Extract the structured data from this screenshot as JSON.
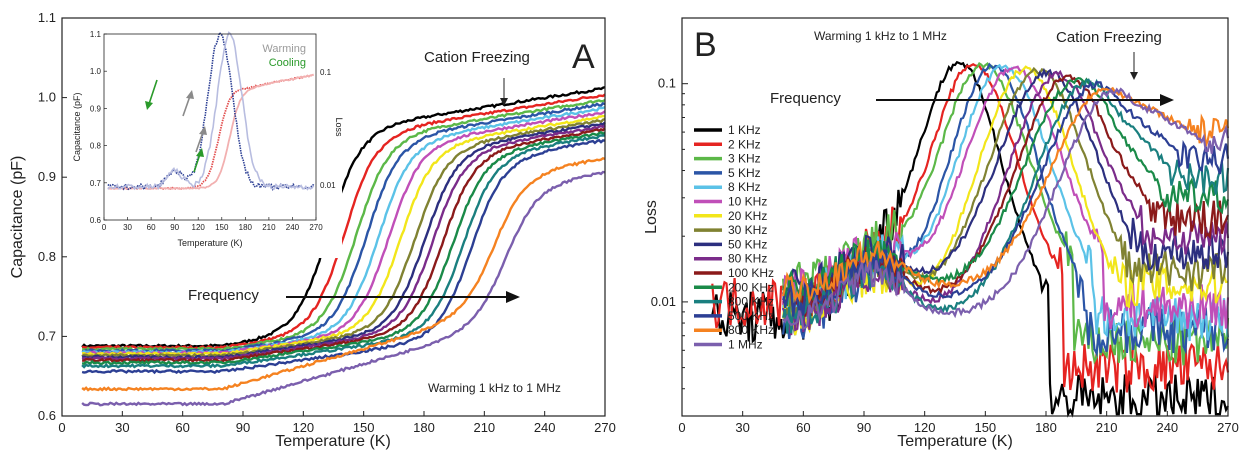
{
  "chart_data": [
    {
      "panel": "A",
      "type": "line",
      "xlabel": "Temperature (K)",
      "ylabel": "Capacitance (pF)",
      "xlim": [
        0,
        270
      ],
      "ylim": [
        0.6,
        1.1
      ],
      "xticks": [
        0,
        30,
        60,
        90,
        120,
        150,
        180,
        210,
        240,
        270
      ],
      "yticks": [
        0.6,
        0.7,
        0.8,
        0.9,
        1.0,
        1.1
      ],
      "annotations": {
        "cation_freezing": "Cation Freezing",
        "frequency": "Frequency",
        "warming": "Warming 1 kHz to 1 MHz"
      },
      "series": [
        {
          "color": "#000000",
          "base": 0.688,
          "top": 0.965,
          "mid": 133
        },
        {
          "color": "#e52421",
          "base": 0.686,
          "top": 0.96,
          "mid": 141
        },
        {
          "color": "#5cb848",
          "base": 0.684,
          "top": 0.956,
          "mid": 147
        },
        {
          "color": "#2b55a6",
          "base": 0.682,
          "top": 0.953,
          "mid": 152
        },
        {
          "color": "#5bc2e7",
          "base": 0.68,
          "top": 0.95,
          "mid": 158
        },
        {
          "color": "#c04fb8",
          "base": 0.679,
          "top": 0.947,
          "mid": 163
        },
        {
          "color": "#f2e61a",
          "base": 0.678,
          "top": 0.944,
          "mid": 169
        },
        {
          "color": "#808232",
          "base": 0.676,
          "top": 0.942,
          "mid": 176
        },
        {
          "color": "#2c2f7f",
          "base": 0.674,
          "top": 0.94,
          "mid": 181
        },
        {
          "color": "#7b2c8a",
          "base": 0.672,
          "top": 0.938,
          "mid": 185
        },
        {
          "color": "#8b1a1a",
          "base": 0.67,
          "top": 0.936,
          "mid": 190
        },
        {
          "color": "#1a8a48",
          "base": 0.667,
          "top": 0.934,
          "mid": 195
        },
        {
          "color": "#1a7f7f",
          "base": 0.663,
          "top": 0.932,
          "mid": 200
        },
        {
          "color": "#2c3f94",
          "base": 0.656,
          "top": 0.928,
          "mid": 204
        },
        {
          "color": "#f58220",
          "base": 0.634,
          "top": 0.91,
          "mid": 216
        },
        {
          "color": "#7b5fad",
          "base": 0.615,
          "top": 0.895,
          "mid": 222
        }
      ],
      "inset": {
        "xlabel": "Temperature (K)",
        "ylabel": "Capacitance (pF)",
        "y2label": "Loss",
        "xlim": [
          0,
          270
        ],
        "ylim": [
          0.6,
          1.1
        ],
        "xticks": [
          0,
          30,
          60,
          90,
          120,
          150,
          180,
          210,
          240,
          270
        ],
        "yticks": [
          0.6,
          0.7,
          0.8,
          0.9,
          1.0,
          1.1
        ],
        "y2ticks": [
          "0.1",
          "0.01"
        ],
        "legend": [
          {
            "name": "Warming",
            "color": "#9a9a9a"
          },
          {
            "name": "Cooling",
            "color": "#2a9a2a"
          }
        ]
      }
    },
    {
      "panel": "B",
      "type": "line",
      "xlabel": "Temperature (K)",
      "ylabel": "Loss",
      "xlim": [
        0,
        270
      ],
      "yscale": "log",
      "ylim": [
        0.003,
        0.2
      ],
      "xticks": [
        0,
        30,
        60,
        90,
        120,
        150,
        180,
        210,
        240,
        270
      ],
      "yticks": [
        0.01,
        0.1
      ],
      "annotations": {
        "cation_freezing": "Cation Freezing",
        "frequency": "Frequency",
        "warming": "Warming 1 kHz to 1 MHz"
      },
      "legend_position": "left",
      "series": [
        {
          "name": "1 KHz",
          "color": "#000000",
          "peak_t": 137,
          "peak_v": 0.125,
          "tail": 0.0035
        },
        {
          "name": "2 KHz",
          "color": "#e52421",
          "peak_t": 144,
          "peak_v": 0.123,
          "tail": 0.005
        },
        {
          "name": "3 KHz",
          "color": "#5cb848",
          "peak_t": 149,
          "peak_v": 0.122,
          "tail": 0.0065
        },
        {
          "name": "5 KHz",
          "color": "#2b55a6",
          "peak_t": 154,
          "peak_v": 0.121,
          "tail": 0.0075
        },
        {
          "name": "8 KHz",
          "color": "#5bc2e7",
          "peak_t": 159,
          "peak_v": 0.12,
          "tail": 0.0085
        },
        {
          "name": "10 KHz",
          "color": "#c04fb8",
          "peak_t": 164,
          "peak_v": 0.119,
          "tail": 0.0095
        },
        {
          "name": "20 KHz",
          "color": "#f2e61a",
          "peak_t": 170,
          "peak_v": 0.117,
          "tail": 0.012
        },
        {
          "name": "30 KHz",
          "color": "#808232",
          "peak_t": 176,
          "peak_v": 0.115,
          "tail": 0.014
        },
        {
          "name": "50 KHz",
          "color": "#2c2f7f",
          "peak_t": 181,
          "peak_v": 0.113,
          "tail": 0.017
        },
        {
          "name": "80 KHz",
          "color": "#7b2c8a",
          "peak_t": 186,
          "peak_v": 0.11,
          "tail": 0.02
        },
        {
          "name": "100 KHz",
          "color": "#8b1a1a",
          "peak_t": 191,
          "peak_v": 0.108,
          "tail": 0.024
        },
        {
          "name": "200 KHz",
          "color": "#1a8a48",
          "peak_t": 196,
          "peak_v": 0.105,
          "tail": 0.03
        },
        {
          "name": "300 KHz",
          "color": "#1a7f7f",
          "peak_t": 201,
          "peak_v": 0.102,
          "tail": 0.037
        },
        {
          "name": "500 KHz",
          "color": "#2c3f94",
          "peak_t": 205,
          "peak_v": 0.099,
          "tail": 0.045
        },
        {
          "name": "800 KHz",
          "color": "#f58220",
          "peak_t": 210,
          "peak_v": 0.096,
          "tail": 0.06
        },
        {
          "name": "1 MHz",
          "color": "#7b5fad",
          "peak_t": 214,
          "peak_v": 0.093,
          "tail": 0.055
        }
      ]
    }
  ]
}
